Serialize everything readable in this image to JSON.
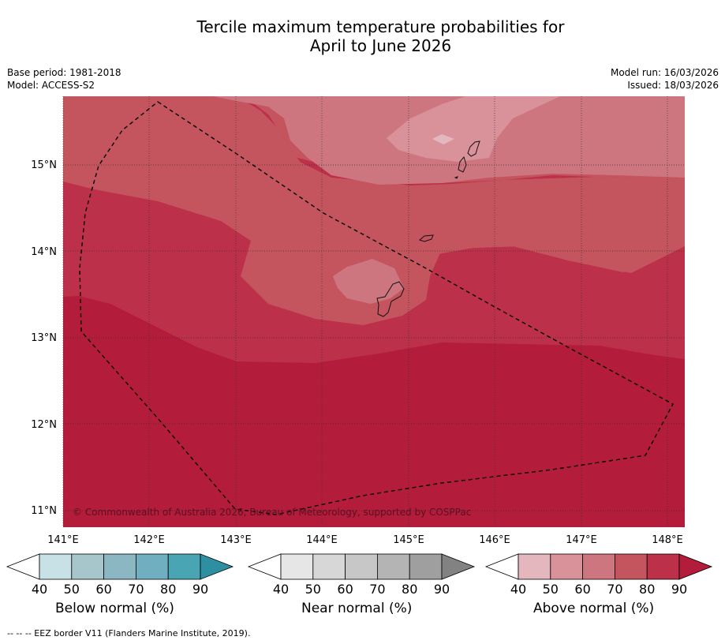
{
  "title": {
    "line1": "Tercile maximum temperature probabilities for",
    "line2": "April to June 2026"
  },
  "meta_left": {
    "base_period": "Base period: 1981-2018",
    "model": "Model: ACCESS-S2"
  },
  "meta_right": {
    "model_run": "Model run: 16/03/2026",
    "issued": "Issued: 18/03/2026"
  },
  "map": {
    "lat_labels": [
      "15°N",
      "14°N",
      "13°N",
      "12°N",
      "11°N"
    ],
    "lon_labels": [
      "141°E",
      "142°E",
      "143°E",
      "144°E",
      "145°E",
      "146°E",
      "147°E",
      "148°E"
    ],
    "copyright": "© Commonwealth of Australia 2026, Bureau of Meteorology, supported by COSPPac"
  },
  "colorbars": [
    {
      "name": "below",
      "label": "Below normal (%)",
      "ticks": [
        "40",
        "50",
        "60",
        "70",
        "80",
        "90"
      ],
      "colors": [
        "#ffffff",
        "#c8e1e7",
        "#a7c6cb",
        "#8ab7c2",
        "#6fafc0",
        "#49a4b4",
        "#2e8fa3"
      ]
    },
    {
      "name": "near",
      "label": "Near normal (%)",
      "ticks": [
        "40",
        "50",
        "60",
        "70",
        "80",
        "90"
      ],
      "colors": [
        "#ffffff",
        "#e6e6e6",
        "#d7d7d7",
        "#c7c7c7",
        "#b4b4b4",
        "#9f9f9f",
        "#828282"
      ]
    },
    {
      "name": "above",
      "label": "Above normal (%)",
      "ticks": [
        "40",
        "50",
        "60",
        "70",
        "80",
        "90"
      ],
      "colors": [
        "#ffffff",
        "#e4b6bd",
        "#d99299",
        "#ce767f",
        "#c4555f",
        "#bd3049",
        "#b31c3a"
      ]
    }
  ],
  "footer": "--  --  -- EEZ border V11 (Flanders Marine Institute, 2019)."
}
